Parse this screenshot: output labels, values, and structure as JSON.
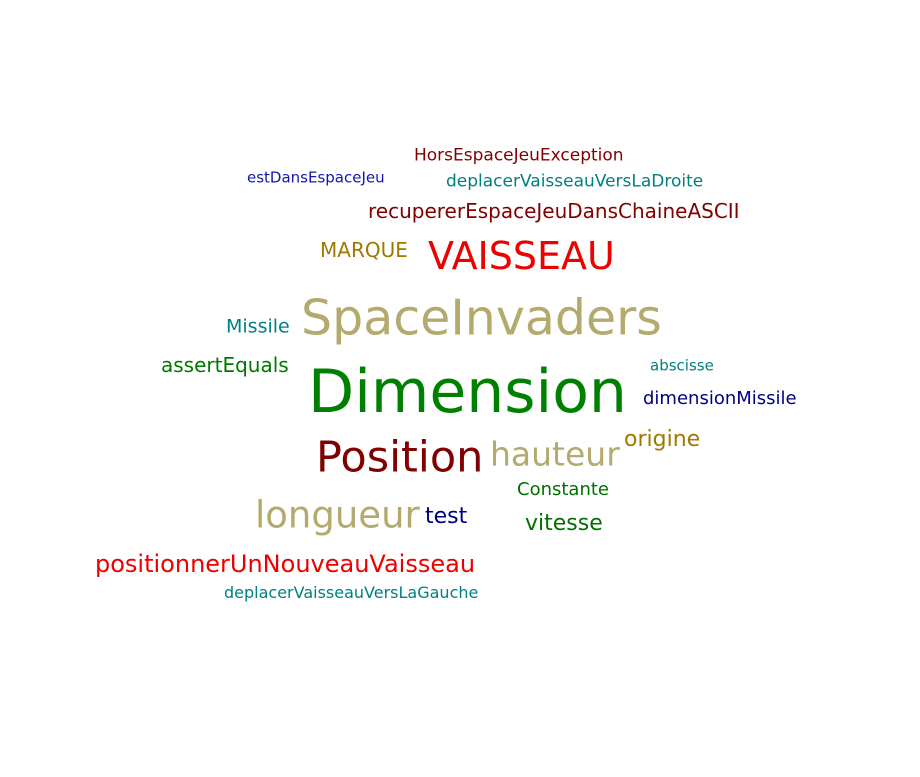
{
  "words": [
    {
      "text": "HorsEspaceJeuException",
      "color": "#800000"
    },
    {
      "text": "estDansEspaceJeu",
      "color": "#1414b4"
    },
    {
      "text": "deplacerVaisseauVersLaDroite",
      "color": "#008080"
    },
    {
      "text": "recupererEspaceJeuDansChaineASCII",
      "color": "#800000"
    },
    {
      "text": "MARQUE",
      "color": "#a07800"
    },
    {
      "text": "VAISSEAU",
      "color": "#ee0000"
    },
    {
      "text": "SpaceInvaders",
      "color": "#b4aa6e"
    },
    {
      "text": "Missile",
      "color": "#008080"
    },
    {
      "text": "assertEquals",
      "color": "#007800"
    },
    {
      "text": "abscisse",
      "color": "#008080"
    },
    {
      "text": "Dimension",
      "color": "#008000"
    },
    {
      "text": "dimensionMissile",
      "color": "#000080"
    },
    {
      "text": "origine",
      "color": "#a07800"
    },
    {
      "text": "Position",
      "color": "#800000"
    },
    {
      "text": "hauteur",
      "color": "#b4aa6e"
    },
    {
      "text": "Constante",
      "color": "#007000"
    },
    {
      "text": "longueur",
      "color": "#b4aa6e"
    },
    {
      "text": "test",
      "color": "#000080"
    },
    {
      "text": "vitesse",
      "color": "#007000"
    },
    {
      "text": "positionnerUnNouveauVaisseau",
      "color": "#ee0000"
    },
    {
      "text": "deplacerVaisseauVersLaGauche",
      "color": "#008080"
    }
  ]
}
